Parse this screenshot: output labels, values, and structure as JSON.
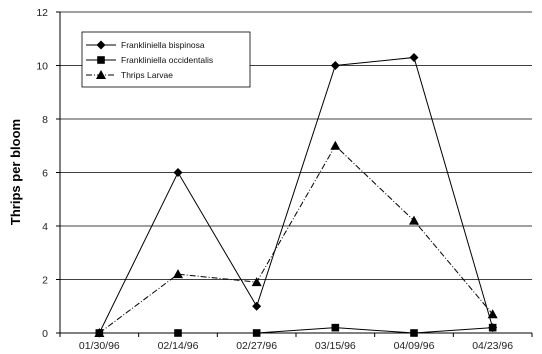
{
  "chart_data": {
    "type": "line",
    "title": "",
    "xlabel": "",
    "ylabel": "Thrips per bloom",
    "ylim": [
      0,
      12
    ],
    "yticks": [
      "0",
      "2",
      "4",
      "6",
      "8",
      "10",
      "12"
    ],
    "categories": [
      "01/30/96",
      "02/14/96",
      "02/27/96",
      "03/15/96",
      "04/09/96",
      "04/23/96"
    ],
    "grid": "horizontal",
    "legend_position": "top-left",
    "series": [
      {
        "name": "Frankliniella bispinosa",
        "marker": "diamond",
        "line": "solid",
        "color": "#000000",
        "values": [
          0,
          6,
          1,
          10,
          10.3,
          0.2
        ]
      },
      {
        "name": "Frankliniella occidentalis",
        "marker": "square",
        "line": "solid",
        "color": "#000000",
        "values": [
          0,
          0,
          0,
          0.2,
          0,
          0.2
        ]
      },
      {
        "name": "Thrips Larvae",
        "marker": "triangle",
        "line": "dashdot",
        "color": "#000000",
        "values": [
          0,
          2.2,
          1.9,
          7,
          4.2,
          0.7
        ]
      }
    ]
  }
}
